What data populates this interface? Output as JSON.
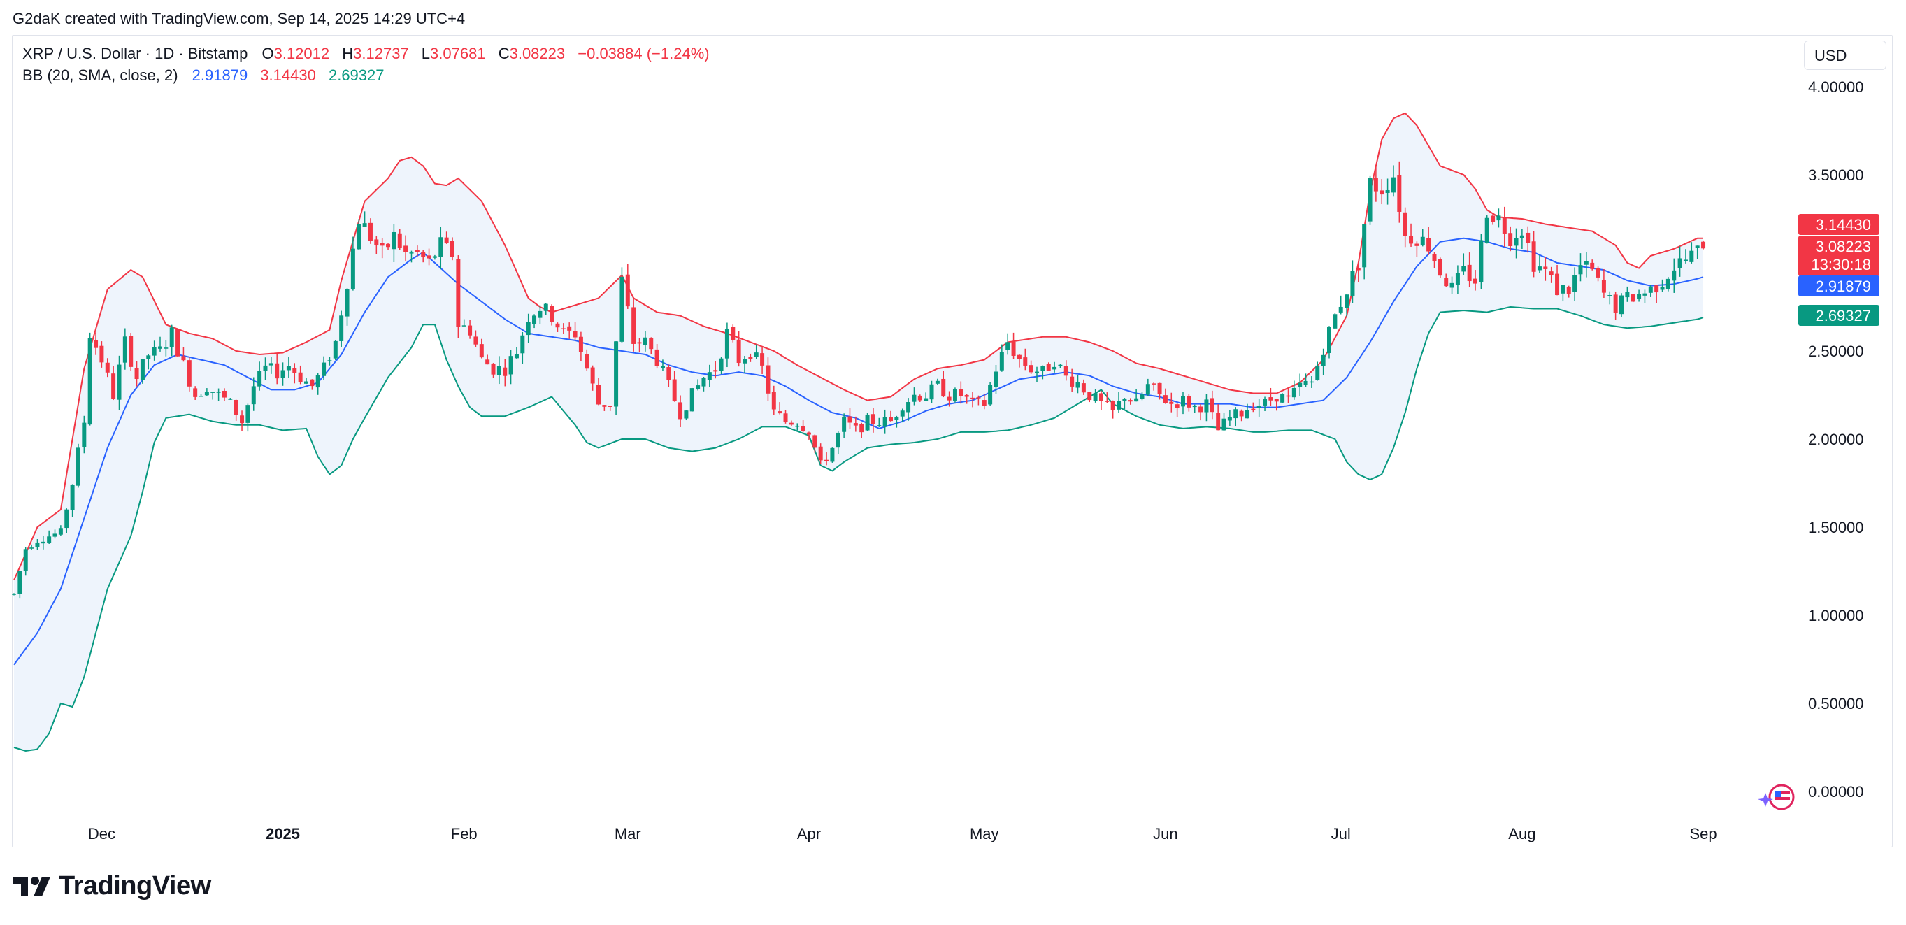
{
  "header": {
    "attribution": "G2daK created with TradingView.com, Sep 14, 2025 14:29 UTC+4"
  },
  "legend": {
    "symbol": "XRP / U.S. Dollar · 1D · Bitstamp",
    "open_label": "O",
    "open": "3.12012",
    "high_label": "H",
    "high": "3.12737",
    "low_label": "L",
    "low": "3.07681",
    "close_label": "C",
    "close": "3.08223",
    "change": "−0.03884 (−1.24%)",
    "bb_label": "BB (20, SMA, close, 2)",
    "bb_mid": "2.91879",
    "bb_upper": "3.14430",
    "bb_lower": "2.69327"
  },
  "currency_button": "USD",
  "price_tags": {
    "upper": "3.14430",
    "close": "3.08223",
    "countdown": "13:30:18",
    "mid": "2.91879",
    "lower": "2.69327"
  },
  "footer": {
    "brand": "TradingView"
  },
  "colors": {
    "up": "#089981",
    "down": "#f23645",
    "mid": "#2962ff",
    "upper": "#f23645",
    "lower": "#089981",
    "fill": "#eef4fc"
  },
  "chart_data": {
    "type": "candlestick",
    "title": "XRP / U.S. Dollar · 1D · Bitstamp",
    "ylim": [
      -0.15,
      4.1
    ],
    "y_ticks": [
      "4.00000",
      "3.50000",
      "3.00000",
      "2.50000",
      "2.00000",
      "1.50000",
      "1.00000",
      "0.50000",
      "0.00000"
    ],
    "y_tick_values": [
      4.0,
      3.5,
      3.0,
      2.5,
      2.0,
      1.5,
      1.0,
      0.5,
      0.0
    ],
    "x_ticks": [
      {
        "label": "Dec",
        "day": 15
      },
      {
        "label": "2025",
        "day": 46,
        "bold": true
      },
      {
        "label": "Feb",
        "day": 77
      },
      {
        "label": "Mar",
        "day": 105
      },
      {
        "label": "Apr",
        "day": 136
      },
      {
        "label": "May",
        "day": 166
      },
      {
        "label": "Jun",
        "day": 197
      },
      {
        "label": "Jul",
        "day": 227
      },
      {
        "label": "Aug",
        "day": 258
      },
      {
        "label": "Sep",
        "day": 289
      }
    ],
    "x_range_days": [
      0,
      305
    ],
    "close_anchors": [
      [
        0,
        1.12
      ],
      [
        2,
        1.38
      ],
      [
        4,
        1.43
      ],
      [
        6,
        1.45
      ],
      [
        8,
        1.47
      ],
      [
        10,
        1.75
      ],
      [
        12,
        2.1
      ],
      [
        13,
        2.6
      ],
      [
        15,
        2.45
      ],
      [
        17,
        2.25
      ],
      [
        19,
        2.55
      ],
      [
        21,
        2.35
      ],
      [
        23,
        2.48
      ],
      [
        25,
        2.5
      ],
      [
        27,
        2.6
      ],
      [
        29,
        2.42
      ],
      [
        31,
        2.25
      ],
      [
        33,
        2.3
      ],
      [
        35,
        2.25
      ],
      [
        37,
        2.2
      ],
      [
        39,
        2.1
      ],
      [
        41,
        2.3
      ],
      [
        43,
        2.4
      ],
      [
        45,
        2.38
      ],
      [
        47,
        2.42
      ],
      [
        49,
        2.35
      ],
      [
        51,
        2.3
      ],
      [
        53,
        2.4
      ],
      [
        55,
        2.55
      ],
      [
        57,
        2.9
      ],
      [
        59,
        3.25
      ],
      [
        61,
        3.15
      ],
      [
        63,
        3.05
      ],
      [
        65,
        3.15
      ],
      [
        67,
        3.05
      ],
      [
        69,
        3.05
      ],
      [
        71,
        3.0
      ],
      [
        73,
        3.1
      ],
      [
        75,
        3.05
      ],
      [
        76,
        2.65
      ],
      [
        78,
        2.62
      ],
      [
        80,
        2.45
      ],
      [
        82,
        2.4
      ],
      [
        84,
        2.4
      ],
      [
        86,
        2.5
      ],
      [
        88,
        2.7
      ],
      [
        90,
        2.75
      ],
      [
        92,
        2.7
      ],
      [
        94,
        2.6
      ],
      [
        96,
        2.6
      ],
      [
        98,
        2.4
      ],
      [
        100,
        2.2
      ],
      [
        102,
        2.2
      ],
      [
        104,
        2.9
      ],
      [
        106,
        2.55
      ],
      [
        108,
        2.55
      ],
      [
        110,
        2.45
      ],
      [
        112,
        2.3
      ],
      [
        114,
        2.15
      ],
      [
        116,
        2.25
      ],
      [
        118,
        2.35
      ],
      [
        120,
        2.4
      ],
      [
        122,
        2.6
      ],
      [
        124,
        2.45
      ],
      [
        126,
        2.5
      ],
      [
        128,
        2.4
      ],
      [
        130,
        2.15
      ],
      [
        132,
        2.1
      ],
      [
        134,
        2.1
      ],
      [
        136,
        2.05
      ],
      [
        138,
        1.85
      ],
      [
        140,
        1.95
      ],
      [
        142,
        2.1
      ],
      [
        144,
        2.05
      ],
      [
        146,
        2.1
      ],
      [
        148,
        2.1
      ],
      [
        150,
        2.1
      ],
      [
        152,
        2.2
      ],
      [
        154,
        2.25
      ],
      [
        156,
        2.25
      ],
      [
        158,
        2.3
      ],
      [
        160,
        2.25
      ],
      [
        162,
        2.25
      ],
      [
        164,
        2.2
      ],
      [
        166,
        2.2
      ],
      [
        168,
        2.4
      ],
      [
        170,
        2.55
      ],
      [
        172,
        2.45
      ],
      [
        174,
        2.4
      ],
      [
        176,
        2.38
      ],
      [
        178,
        2.45
      ],
      [
        180,
        2.35
      ],
      [
        182,
        2.32
      ],
      [
        184,
        2.25
      ],
      [
        186,
        2.2
      ],
      [
        188,
        2.15
      ],
      [
        190,
        2.25
      ],
      [
        192,
        2.2
      ],
      [
        194,
        2.3
      ],
      [
        196,
        2.25
      ],
      [
        198,
        2.2
      ],
      [
        200,
        2.22
      ],
      [
        202,
        2.18
      ],
      [
        204,
        2.2
      ],
      [
        206,
        2.05
      ],
      [
        208,
        2.12
      ],
      [
        210,
        2.15
      ],
      [
        212,
        2.2
      ],
      [
        214,
        2.2
      ],
      [
        216,
        2.25
      ],
      [
        218,
        2.22
      ],
      [
        220,
        2.3
      ],
      [
        222,
        2.32
      ],
      [
        224,
        2.52
      ],
      [
        226,
        2.7
      ],
      [
        228,
        2.85
      ],
      [
        230,
        3.0
      ],
      [
        232,
        3.45
      ],
      [
        234,
        3.42
      ],
      [
        236,
        3.5
      ],
      [
        238,
        3.15
      ],
      [
        240,
        3.15
      ],
      [
        242,
        3.1
      ],
      [
        244,
        2.95
      ],
      [
        246,
        2.85
      ],
      [
        248,
        2.95
      ],
      [
        250,
        2.9
      ],
      [
        252,
        3.3
      ],
      [
        254,
        3.25
      ],
      [
        256,
        3.15
      ],
      [
        258,
        3.2
      ],
      [
        260,
        3.0
      ],
      [
        262,
        2.95
      ],
      [
        264,
        2.85
      ],
      [
        266,
        2.85
      ],
      [
        268,
        2.98
      ],
      [
        270,
        2.95
      ],
      [
        272,
        2.82
      ],
      [
        274,
        2.75
      ],
      [
        276,
        2.8
      ],
      [
        278,
        2.82
      ],
      [
        280,
        2.85
      ],
      [
        282,
        2.9
      ],
      [
        284,
        2.98
      ],
      [
        286,
        3.02
      ],
      [
        288,
        3.06
      ],
      [
        289,
        3.08
      ]
    ],
    "bb_upper_anchors": [
      [
        0,
        1.2
      ],
      [
        4,
        1.5
      ],
      [
        8,
        1.6
      ],
      [
        12,
        2.4
      ],
      [
        16,
        2.85
      ],
      [
        20,
        2.96
      ],
      [
        22,
        2.92
      ],
      [
        26,
        2.65
      ],
      [
        30,
        2.6
      ],
      [
        34,
        2.57
      ],
      [
        38,
        2.5
      ],
      [
        42,
        2.48
      ],
      [
        46,
        2.49
      ],
      [
        50,
        2.55
      ],
      [
        54,
        2.62
      ],
      [
        56,
        2.9
      ],
      [
        60,
        3.35
      ],
      [
        64,
        3.48
      ],
      [
        66,
        3.58
      ],
      [
        68,
        3.6
      ],
      [
        70,
        3.55
      ],
      [
        72,
        3.45
      ],
      [
        74,
        3.44
      ],
      [
        76,
        3.48
      ],
      [
        80,
        3.35
      ],
      [
        84,
        3.1
      ],
      [
        88,
        2.8
      ],
      [
        90,
        2.75
      ],
      [
        92,
        2.72
      ],
      [
        96,
        2.76
      ],
      [
        100,
        2.8
      ],
      [
        104,
        2.93
      ],
      [
        106,
        2.8
      ],
      [
        110,
        2.72
      ],
      [
        114,
        2.7
      ],
      [
        118,
        2.64
      ],
      [
        122,
        2.6
      ],
      [
        126,
        2.55
      ],
      [
        130,
        2.5
      ],
      [
        134,
        2.42
      ],
      [
        138,
        2.35
      ],
      [
        142,
        2.28
      ],
      [
        146,
        2.22
      ],
      [
        150,
        2.24
      ],
      [
        154,
        2.34
      ],
      [
        158,
        2.4
      ],
      [
        162,
        2.42
      ],
      [
        166,
        2.45
      ],
      [
        170,
        2.55
      ],
      [
        176,
        2.58
      ],
      [
        180,
        2.58
      ],
      [
        184,
        2.55
      ],
      [
        188,
        2.5
      ],
      [
        192,
        2.43
      ],
      [
        196,
        2.4
      ],
      [
        200,
        2.36
      ],
      [
        204,
        2.32
      ],
      [
        208,
        2.28
      ],
      [
        212,
        2.26
      ],
      [
        216,
        2.26
      ],
      [
        220,
        2.32
      ],
      [
        224,
        2.45
      ],
      [
        228,
        2.7
      ],
      [
        230,
        3.0
      ],
      [
        232,
        3.4
      ],
      [
        234,
        3.7
      ],
      [
        236,
        3.82
      ],
      [
        238,
        3.85
      ],
      [
        240,
        3.78
      ],
      [
        244,
        3.55
      ],
      [
        248,
        3.5
      ],
      [
        250,
        3.42
      ],
      [
        252,
        3.3
      ],
      [
        254,
        3.26
      ],
      [
        258,
        3.25
      ],
      [
        262,
        3.22
      ],
      [
        266,
        3.2
      ],
      [
        270,
        3.18
      ],
      [
        274,
        3.1
      ],
      [
        276,
        3.0
      ],
      [
        278,
        2.97
      ],
      [
        280,
        3.04
      ],
      [
        284,
        3.08
      ],
      [
        288,
        3.14
      ],
      [
        289,
        3.14
      ]
    ],
    "bb_mid_anchors": [
      [
        0,
        0.72
      ],
      [
        4,
        0.9
      ],
      [
        8,
        1.15
      ],
      [
        12,
        1.55
      ],
      [
        16,
        1.95
      ],
      [
        20,
        2.25
      ],
      [
        24,
        2.42
      ],
      [
        28,
        2.48
      ],
      [
        32,
        2.45
      ],
      [
        36,
        2.42
      ],
      [
        40,
        2.35
      ],
      [
        44,
        2.28
      ],
      [
        48,
        2.28
      ],
      [
        52,
        2.32
      ],
      [
        56,
        2.48
      ],
      [
        60,
        2.72
      ],
      [
        64,
        2.92
      ],
      [
        68,
        3.02
      ],
      [
        70,
        3.06
      ],
      [
        72,
        3.0
      ],
      [
        76,
        2.88
      ],
      [
        80,
        2.78
      ],
      [
        84,
        2.68
      ],
      [
        88,
        2.6
      ],
      [
        92,
        2.58
      ],
      [
        96,
        2.56
      ],
      [
        100,
        2.52
      ],
      [
        104,
        2.5
      ],
      [
        108,
        2.48
      ],
      [
        112,
        2.42
      ],
      [
        116,
        2.38
      ],
      [
        120,
        2.36
      ],
      [
        124,
        2.38
      ],
      [
        128,
        2.36
      ],
      [
        132,
        2.3
      ],
      [
        136,
        2.22
      ],
      [
        140,
        2.15
      ],
      [
        144,
        2.12
      ],
      [
        148,
        2.06
      ],
      [
        152,
        2.1
      ],
      [
        156,
        2.16
      ],
      [
        160,
        2.2
      ],
      [
        164,
        2.22
      ],
      [
        168,
        2.28
      ],
      [
        172,
        2.34
      ],
      [
        176,
        2.36
      ],
      [
        180,
        2.38
      ],
      [
        184,
        2.36
      ],
      [
        188,
        2.3
      ],
      [
        192,
        2.26
      ],
      [
        196,
        2.24
      ],
      [
        200,
        2.2
      ],
      [
        204,
        2.2
      ],
      [
        208,
        2.2
      ],
      [
        212,
        2.18
      ],
      [
        216,
        2.18
      ],
      [
        220,
        2.2
      ],
      [
        224,
        2.22
      ],
      [
        228,
        2.35
      ],
      [
        232,
        2.55
      ],
      [
        236,
        2.78
      ],
      [
        240,
        2.98
      ],
      [
        244,
        3.12
      ],
      [
        248,
        3.14
      ],
      [
        252,
        3.12
      ],
      [
        256,
        3.08
      ],
      [
        260,
        3.06
      ],
      [
        264,
        3.0
      ],
      [
        268,
        2.98
      ],
      [
        272,
        2.96
      ],
      [
        276,
        2.9
      ],
      [
        280,
        2.87
      ],
      [
        284,
        2.88
      ],
      [
        288,
        2.91
      ],
      [
        289,
        2.92
      ]
    ],
    "bb_lower_anchors": [
      [
        0,
        0.25
      ],
      [
        2,
        0.23
      ],
      [
        4,
        0.24
      ],
      [
        6,
        0.33
      ],
      [
        8,
        0.5
      ],
      [
        10,
        0.48
      ],
      [
        12,
        0.65
      ],
      [
        14,
        0.9
      ],
      [
        16,
        1.15
      ],
      [
        20,
        1.45
      ],
      [
        22,
        1.7
      ],
      [
        24,
        1.98
      ],
      [
        26,
        2.12
      ],
      [
        30,
        2.14
      ],
      [
        34,
        2.1
      ],
      [
        38,
        2.08
      ],
      [
        42,
        2.08
      ],
      [
        46,
        2.05
      ],
      [
        50,
        2.06
      ],
      [
        52,
        1.9
      ],
      [
        54,
        1.8
      ],
      [
        56,
        1.85
      ],
      [
        58,
        2.0
      ],
      [
        60,
        2.12
      ],
      [
        64,
        2.35
      ],
      [
        68,
        2.52
      ],
      [
        70,
        2.65
      ],
      [
        72,
        2.65
      ],
      [
        74,
        2.45
      ],
      [
        76,
        2.3
      ],
      [
        78,
        2.18
      ],
      [
        80,
        2.13
      ],
      [
        84,
        2.13
      ],
      [
        88,
        2.18
      ],
      [
        92,
        2.24
      ],
      [
        96,
        2.08
      ],
      [
        98,
        1.98
      ],
      [
        100,
        1.95
      ],
      [
        104,
        2.0
      ],
      [
        108,
        2.0
      ],
      [
        112,
        1.95
      ],
      [
        116,
        1.93
      ],
      [
        120,
        1.95
      ],
      [
        124,
        2.0
      ],
      [
        128,
        2.07
      ],
      [
        132,
        2.07
      ],
      [
        136,
        2.02
      ],
      [
        138,
        1.85
      ],
      [
        140,
        1.82
      ],
      [
        142,
        1.87
      ],
      [
        146,
        1.95
      ],
      [
        150,
        1.97
      ],
      [
        154,
        1.98
      ],
      [
        158,
        2.0
      ],
      [
        162,
        2.04
      ],
      [
        166,
        2.04
      ],
      [
        170,
        2.05
      ],
      [
        174,
        2.08
      ],
      [
        178,
        2.12
      ],
      [
        182,
        2.2
      ],
      [
        186,
        2.28
      ],
      [
        188,
        2.2
      ],
      [
        192,
        2.13
      ],
      [
        196,
        2.08
      ],
      [
        200,
        2.06
      ],
      [
        204,
        2.07
      ],
      [
        208,
        2.06
      ],
      [
        212,
        2.04
      ],
      [
        214,
        2.04
      ],
      [
        218,
        2.05
      ],
      [
        222,
        2.05
      ],
      [
        226,
        2.0
      ],
      [
        228,
        1.87
      ],
      [
        230,
        1.8
      ],
      [
        232,
        1.77
      ],
      [
        234,
        1.8
      ],
      [
        236,
        1.95
      ],
      [
        238,
        2.15
      ],
      [
        240,
        2.4
      ],
      [
        242,
        2.6
      ],
      [
        244,
        2.72
      ],
      [
        248,
        2.73
      ],
      [
        252,
        2.72
      ],
      [
        256,
        2.75
      ],
      [
        260,
        2.74
      ],
      [
        264,
        2.74
      ],
      [
        268,
        2.7
      ],
      [
        272,
        2.65
      ],
      [
        276,
        2.63
      ],
      [
        280,
        2.64
      ],
      [
        284,
        2.66
      ],
      [
        288,
        2.68
      ],
      [
        289,
        2.69
      ]
    ],
    "last_candle": {
      "open": 3.12012,
      "high": 3.12737,
      "low": 3.07681,
      "close": 3.08223
    }
  }
}
